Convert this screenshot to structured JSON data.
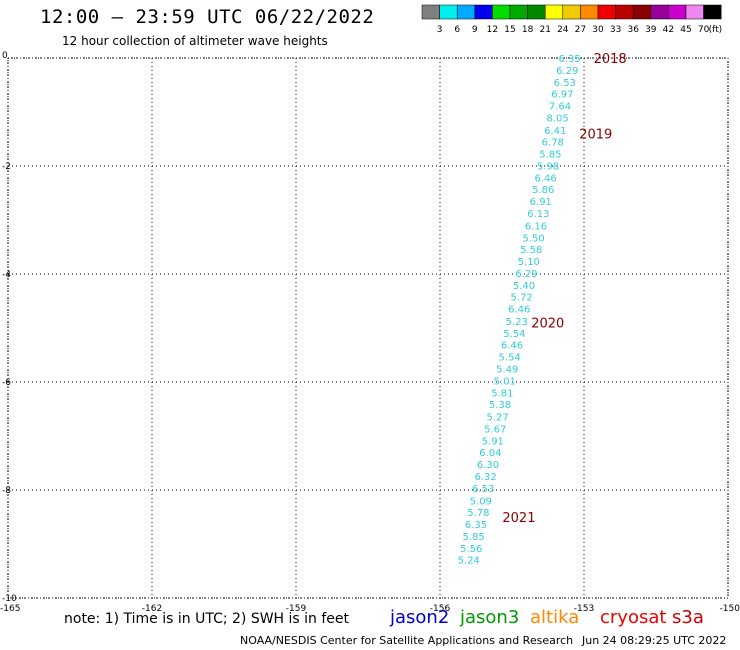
{
  "title": "12:00 — 23:59 UTC 06/22/2022",
  "subtitle": "12 hour collection of altimeter wave heights",
  "colorbar": {
    "colors": [
      "#808080",
      "#00eeee",
      "#00aaff",
      "#0000ee",
      "#00dd00",
      "#00aa00",
      "#008800",
      "#ffff00",
      "#eecc00",
      "#ff8800",
      "#ee0000",
      "#bb0000",
      "#880000",
      "#990099",
      "#cc00cc",
      "#ee88ee",
      "#000000"
    ],
    "labels": [
      "3",
      "6",
      "9",
      "12",
      "15",
      "18",
      "21",
      "24",
      "27",
      "30",
      "33",
      "36",
      "39",
      "42",
      "45",
      "70"
    ],
    "unit": "(ft)"
  },
  "note": "note:  1) Time is in UTC;  2) SWH is in feet",
  "satellites": [
    {
      "name": "jason2",
      "color": "#0000cc"
    },
    {
      "name": "jason3",
      "color": "#009900"
    },
    {
      "name": "altika",
      "color": "#ff8800"
    },
    {
      "name": "cryosat",
      "color": "#ee0000"
    },
    {
      "name": "s3a",
      "color": "#cc0000"
    }
  ],
  "credit": "NOAA/NESDIS Center for Satellite Applications and Research",
  "credit_time": "Jun 24 08:29:25 UTC 2022",
  "chart_data": {
    "type": "scatter",
    "xlim": [
      -165,
      -150
    ],
    "ylim": [
      -10,
      0
    ],
    "x_ticks": [
      "-165",
      "-162",
      "-159",
      "-156",
      "-153",
      "-150"
    ],
    "y_ticks": [
      "0",
      "-2",
      "-4",
      "-6",
      "-8",
      "-10"
    ],
    "grid": true,
    "year_labels": [
      {
        "text": "2018",
        "x": -152.8,
        "y": 0.0
      },
      {
        "text": "2019",
        "x": -153.1,
        "y": -1.4
      },
      {
        "text": "2020",
        "x": -154.1,
        "y": -4.9
      },
      {
        "text": "2021",
        "x": -154.7,
        "y": -8.5
      }
    ],
    "points": [
      {
        "x": -153.3,
        "y": 0.0,
        "v": "6.35"
      },
      {
        "x": -153.35,
        "y": -0.22,
        "v": "6.29"
      },
      {
        "x": -153.4,
        "y": -0.44,
        "v": "6.53"
      },
      {
        "x": -153.45,
        "y": -0.66,
        "v": "6.97"
      },
      {
        "x": -153.5,
        "y": -0.88,
        "v": "7.64"
      },
      {
        "x": -153.55,
        "y": -1.1,
        "v": "8.05"
      },
      {
        "x": -153.6,
        "y": -1.33,
        "v": "6.41"
      },
      {
        "x": -153.65,
        "y": -1.55,
        "v": "6.78"
      },
      {
        "x": -153.7,
        "y": -1.77,
        "v": "5.85"
      },
      {
        "x": -153.75,
        "y": -1.99,
        "v": "5.98"
      },
      {
        "x": -153.8,
        "y": -2.21,
        "v": "6.46"
      },
      {
        "x": -153.85,
        "y": -2.43,
        "v": "5.86"
      },
      {
        "x": -153.9,
        "y": -2.65,
        "v": "6.91"
      },
      {
        "x": -153.95,
        "y": -2.87,
        "v": "6.13"
      },
      {
        "x": -154.0,
        "y": -3.1,
        "v": "6.16"
      },
      {
        "x": -154.05,
        "y": -3.32,
        "v": "5.50"
      },
      {
        "x": -154.1,
        "y": -3.54,
        "v": "5.58"
      },
      {
        "x": -154.15,
        "y": -3.76,
        "v": "5.10"
      },
      {
        "x": -154.2,
        "y": -3.98,
        "v": "6.29"
      },
      {
        "x": -154.25,
        "y": -4.2,
        "v": "5.40"
      },
      {
        "x": -154.3,
        "y": -4.42,
        "v": "5.72"
      },
      {
        "x": -154.35,
        "y": -4.64,
        "v": "6.46"
      },
      {
        "x": -154.4,
        "y": -4.87,
        "v": "5.23"
      },
      {
        "x": -154.45,
        "y": -5.09,
        "v": "5.54"
      },
      {
        "x": -154.5,
        "y": -5.31,
        "v": "6.46"
      },
      {
        "x": -154.55,
        "y": -5.53,
        "v": "5.54"
      },
      {
        "x": -154.6,
        "y": -5.75,
        "v": "5.49"
      },
      {
        "x": -154.65,
        "y": -5.97,
        "v": "5.01"
      },
      {
        "x": -154.7,
        "y": -6.19,
        "v": "5.81"
      },
      {
        "x": -154.75,
        "y": -6.41,
        "v": "5.38"
      },
      {
        "x": -154.8,
        "y": -6.64,
        "v": "5.27"
      },
      {
        "x": -154.85,
        "y": -6.86,
        "v": "5.67"
      },
      {
        "x": -154.9,
        "y": -7.08,
        "v": "5.91"
      },
      {
        "x": -154.95,
        "y": -7.3,
        "v": "6.04"
      },
      {
        "x": -155.0,
        "y": -7.52,
        "v": "6.30"
      },
      {
        "x": -155.05,
        "y": -7.74,
        "v": "6.32"
      },
      {
        "x": -155.1,
        "y": -7.96,
        "v": "6.53"
      },
      {
        "x": -155.15,
        "y": -8.19,
        "v": "5.09"
      },
      {
        "x": -155.2,
        "y": -8.41,
        "v": "5.78"
      },
      {
        "x": -155.25,
        "y": -8.63,
        "v": "6.35"
      },
      {
        "x": -155.3,
        "y": -8.85,
        "v": "5.85"
      },
      {
        "x": -155.35,
        "y": -9.07,
        "v": "5.56"
      },
      {
        "x": -155.4,
        "y": -9.29,
        "v": "5.24"
      }
    ],
    "point_color": "#33ccdd",
    "year_color": "#880000"
  }
}
